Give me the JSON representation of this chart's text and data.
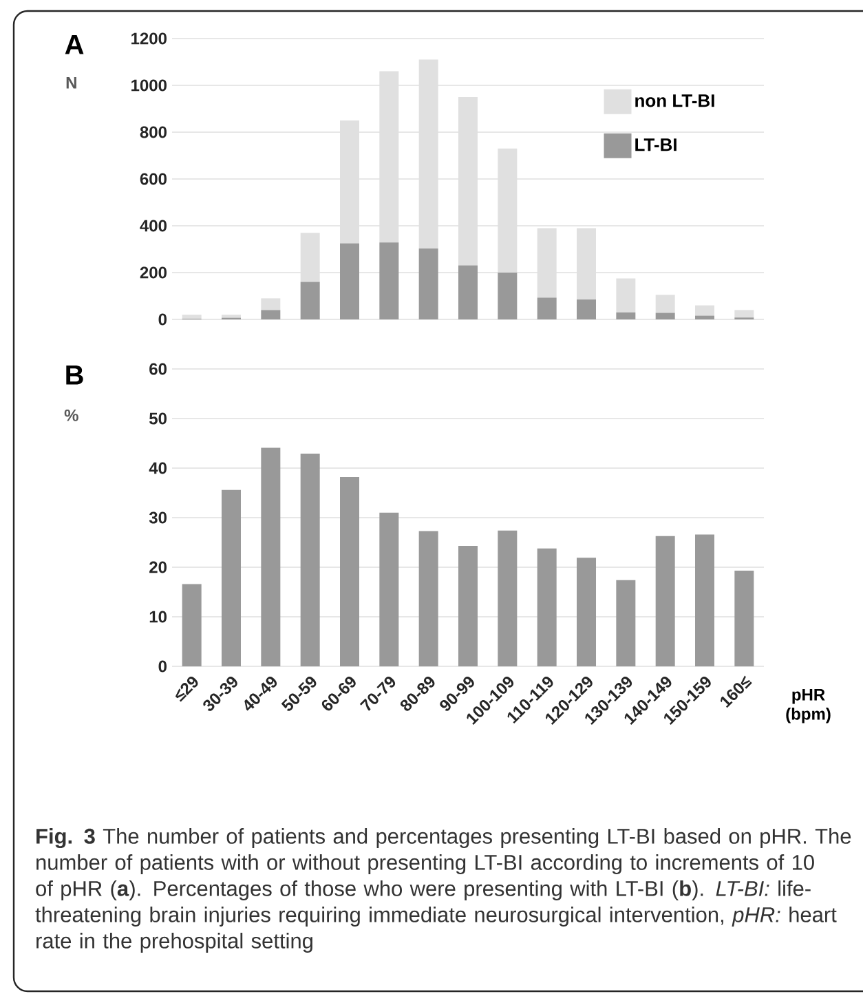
{
  "chart_data": [
    {
      "type": "bar",
      "title": "A",
      "ylabel": "N",
      "stacked": true,
      "categories": [
        null,
        null,
        null,
        null,
        null,
        null,
        null,
        null,
        null,
        null,
        null,
        null,
        null,
        null,
        null
      ],
      "series": [
        {
          "name": "LT-BI",
          "color": "#999999",
          "values": [
            3,
            7,
            40,
            160,
            325,
            329,
            303,
            231,
            200,
            93,
            85,
            30,
            28,
            16,
            8
          ]
        },
        {
          "name": "non LT-BI",
          "color": "#e0e0e0",
          "values": [
            17,
            13,
            50,
            210,
            525,
            731,
            807,
            719,
            530,
            297,
            305,
            145,
            77,
            44,
            32
          ]
        }
      ],
      "ylim": [
        0,
        1200
      ],
      "yticks": [
        0,
        200,
        400,
        600,
        800,
        1000,
        1200
      ],
      "grid": "y",
      "legend": "top right",
      "tick_labels": "y"
    },
    {
      "type": "bar",
      "title": "B",
      "ylabel": "%",
      "xlabel": "pHR (bpm)",
      "categories": [
        "≤29",
        "30-39",
        "40-49",
        "50-59",
        "60-69",
        "70-79",
        "80-89",
        "90-99",
        "100-109",
        "110-119",
        "120-129",
        "130-139",
        "140-149",
        "150-159",
        "160≤"
      ],
      "values": [
        16.6,
        35.6,
        44.1,
        42.9,
        38.2,
        31.0,
        27.3,
        24.3,
        27.4,
        23.8,
        21.9,
        17.4,
        26.3,
        26.6,
        19.3
      ],
      "color": "#999999",
      "ylim": [
        0,
        60
      ],
      "yticks": [
        0,
        10,
        20,
        30,
        40,
        50,
        60
      ],
      "grid": "y",
      "annotations": [
        "**Fig. 3** The number of patients and percentages presenting LT-BI based on pHR. The number of patients with or without presenting LT-BI according to increments of 10 of pHR (**a**). Percentages of those who were presenting with LT-BI (**b**). *LT-BI:* life-threatening brain injuries requiring immediate neurosurgical intervention, *pHR:* heart rate in the prehospital setting"
      ]
    }
  ]
}
